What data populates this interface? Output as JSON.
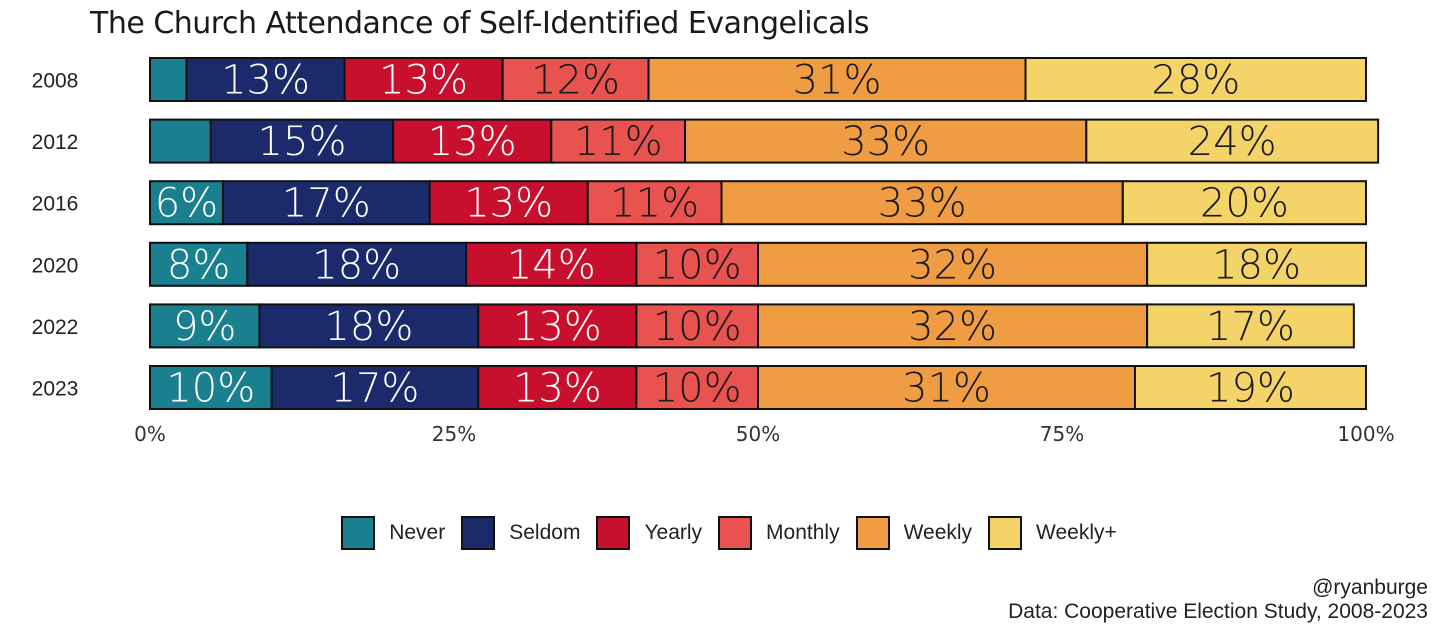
{
  "chart_data": {
    "type": "bar",
    "orientation": "horizontal",
    "stacked": true,
    "title": "The Church Attendance of Self-Identified Evangelicals",
    "categories": [
      "2008",
      "2012",
      "2016",
      "2020",
      "2022",
      "2023"
    ],
    "series": [
      {
        "name": "Never",
        "color": "#1a7f8e",
        "values": [
          3,
          5,
          6,
          8,
          9,
          10
        ],
        "labels": [
          "",
          "",
          "6%",
          "8%",
          "9%",
          "10%"
        ]
      },
      {
        "name": "Seldom",
        "color": "#1b2a6b",
        "values": [
          13,
          15,
          17,
          18,
          18,
          17
        ],
        "labels": [
          "13%",
          "15%",
          "17%",
          "18%",
          "18%",
          "17%"
        ]
      },
      {
        "name": "Yearly",
        "color": "#c8102e",
        "values": [
          13,
          13,
          13,
          14,
          13,
          13
        ],
        "labels": [
          "13%",
          "13%",
          "13%",
          "14%",
          "13%",
          "13%"
        ]
      },
      {
        "name": "Monthly",
        "color": "#e8524f",
        "values": [
          12,
          11,
          11,
          10,
          10,
          10
        ],
        "labels": [
          "12%",
          "11%",
          "11%",
          "10%",
          "10%",
          "10%"
        ]
      },
      {
        "name": "Weekly",
        "color": "#ef9c42",
        "values": [
          31,
          33,
          33,
          32,
          32,
          31
        ],
        "labels": [
          "31%",
          "33%",
          "33%",
          "32%",
          "32%",
          "31%"
        ]
      },
      {
        "name": "Weekly+",
        "color": "#f4d469",
        "values": [
          28,
          24,
          20,
          18,
          17,
          19
        ],
        "labels": [
          "28%",
          "24%",
          "20%",
          "18%",
          "17%",
          "19%"
        ]
      }
    ],
    "label_colors": [
      "#ffffff",
      "#ffffff",
      "#ffffff",
      "#1a1a1a",
      "#1a1a1a",
      "#1a1a1a"
    ],
    "xlim": [
      0,
      100
    ],
    "xticks": [
      "0%",
      "25%",
      "50%",
      "75%",
      "100%"
    ],
    "xtick_values": [
      0,
      25,
      50,
      75,
      100
    ],
    "legend_position": "bottom",
    "grid": false
  },
  "legend": {
    "items": [
      {
        "label": "Never",
        "color": "#1a7f8e"
      },
      {
        "label": "Seldom",
        "color": "#1b2a6b"
      },
      {
        "label": "Yearly",
        "color": "#c8102e"
      },
      {
        "label": "Monthly",
        "color": "#e8524f"
      },
      {
        "label": "Weekly",
        "color": "#ef9c42"
      },
      {
        "label": "Weekly+",
        "color": "#f4d469"
      }
    ]
  },
  "credits": {
    "handle": "@ryanburge",
    "source": "Data: Cooperative Election Study, 2008-2023"
  }
}
